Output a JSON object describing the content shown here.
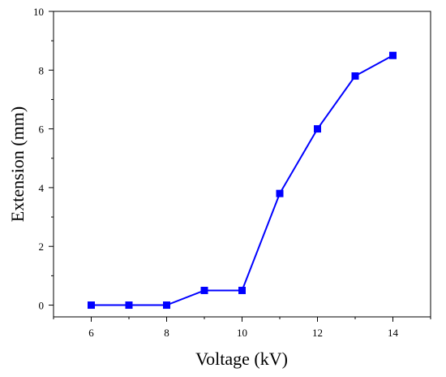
{
  "chart_data": {
    "type": "line",
    "xlabel": "Voltage (kV)",
    "ylabel": "Extension (mm)",
    "xlim": [
      5,
      15
    ],
    "ylim": [
      -0.4,
      10
    ],
    "x_ticks": [
      6,
      8,
      10,
      12,
      14
    ],
    "y_ticks": [
      0,
      2,
      4,
      6,
      8,
      10
    ],
    "grid": false,
    "series": [
      {
        "color": "#0000ff",
        "marker": "square",
        "x": [
          6,
          7,
          8,
          9,
          10,
          11,
          12,
          13,
          14
        ],
        "y": [
          0,
          0,
          0,
          0.5,
          0.5,
          3.8,
          6.0,
          7.8,
          8.5
        ]
      }
    ]
  }
}
